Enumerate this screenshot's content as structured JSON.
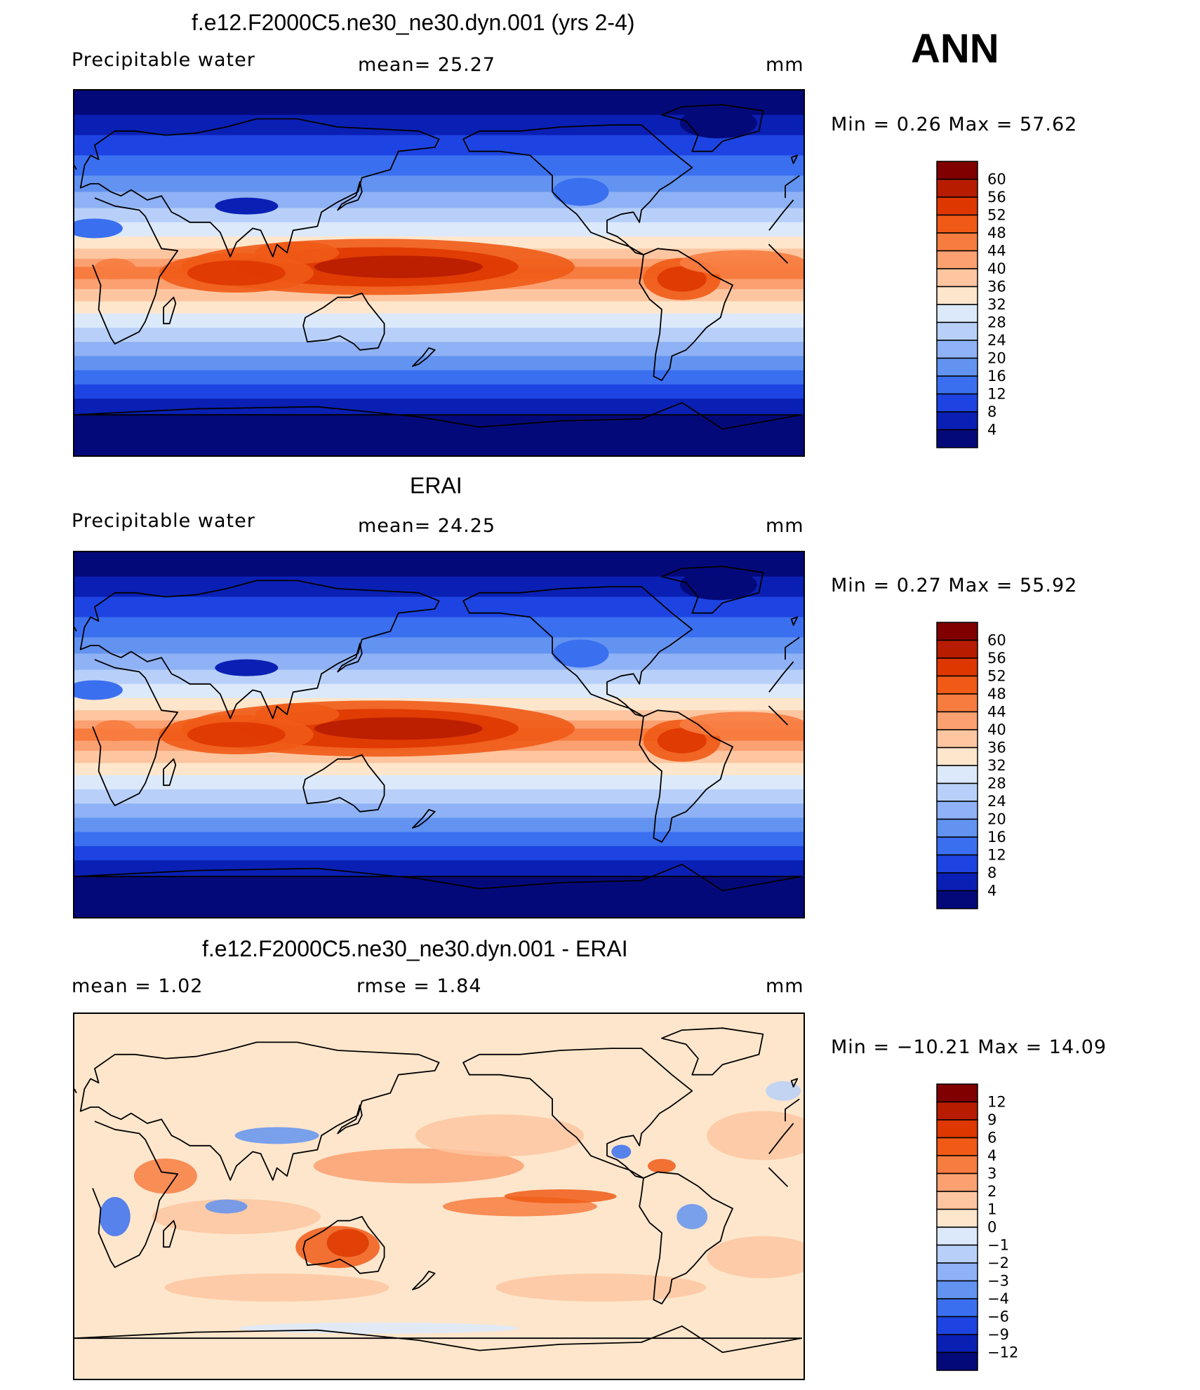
{
  "season": "ANN",
  "panels": [
    {
      "title": "f.e12.F2000C5.ne30_ne30.dyn.001 (yrs 2-4)",
      "left_label": "Precipitable  water",
      "mid_label": "mean=   25.27",
      "units": "mm",
      "minmax": "Min  =     0.26  Max  =    57.62",
      "levels": [
        "60",
        "56",
        "52",
        "48",
        "44",
        "40",
        "36",
        "32",
        "28",
        "24",
        "20",
        "16",
        "12",
        "8",
        "4"
      ]
    },
    {
      "title": "ERAI",
      "left_label": "Precipitable  water",
      "mid_label": "mean=   24.25",
      "units": "mm",
      "minmax": "Min  =     0.27  Max  =    55.92",
      "levels": [
        "60",
        "56",
        "52",
        "48",
        "44",
        "40",
        "36",
        "32",
        "28",
        "24",
        "20",
        "16",
        "12",
        "8",
        "4"
      ]
    },
    {
      "title": "f.e12.F2000C5.ne30_ne30.dyn.001 - ERAI",
      "left_label": "mean  =     1.02",
      "mid_label": "rmse  =     1.84",
      "units": "mm",
      "minmax": "Min  =  −10.21  Max  =    14.09",
      "levels": [
        "12",
        "9",
        "6",
        "4",
        "3",
        "2",
        "1",
        "0",
        "−1",
        "−2",
        "−3",
        "−4",
        "−6",
        "−9",
        "−12"
      ]
    }
  ],
  "colors": {
    "abs_palette": [
      "#800000",
      "#b81c00",
      "#de3700",
      "#f05a16",
      "#f77c40",
      "#fba070",
      "#fdc6a0",
      "#fde6cc",
      "#dce9fb",
      "#b8d0f9",
      "#8fb1f5",
      "#6293f0",
      "#3a6ff0",
      "#1d44e2",
      "#0a1fb4",
      "#04097a"
    ],
    "diff_palette": [
      "#800000",
      "#b81c00",
      "#de3700",
      "#f05a16",
      "#f77c40",
      "#fba070",
      "#fdc6a0",
      "#fde6cc",
      "#dce9fb",
      "#b8d0f9",
      "#8fb1f5",
      "#6293f0",
      "#3a6ff0",
      "#1d44e2",
      "#0a1fb4",
      "#04097a"
    ]
  }
}
